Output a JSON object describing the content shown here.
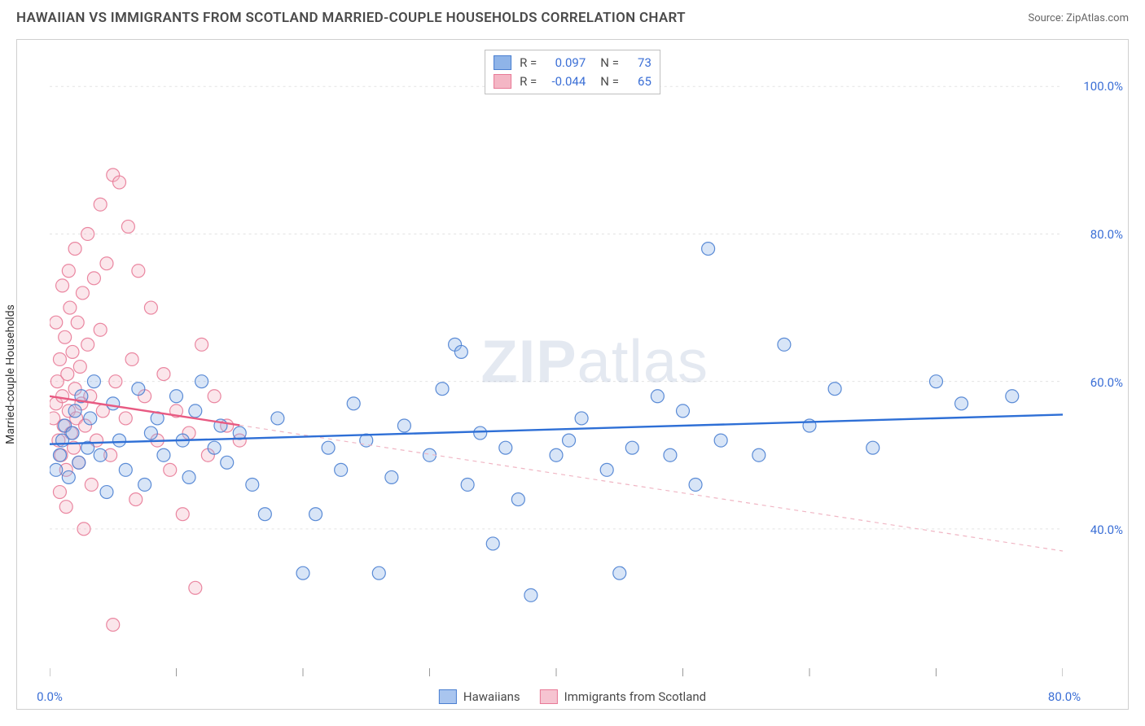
{
  "title": "HAWAIIAN VS IMMIGRANTS FROM SCOTLAND MARRIED-COUPLE HOUSEHOLDS CORRELATION CHART",
  "source": "Source: ZipAtlas.com",
  "ylabel": "Married-couple Households",
  "watermark_a": "ZIP",
  "watermark_b": "atlas",
  "chart": {
    "type": "scatter",
    "xlim": [
      0,
      80
    ],
    "ylim": [
      20,
      105
    ],
    "x_ticks": [
      0,
      10,
      20,
      30,
      40,
      50,
      60,
      70,
      80
    ],
    "x_tick_labels": {
      "0": "0.0%",
      "80": "80.0%"
    },
    "y_ticks": [
      40,
      60,
      80,
      100
    ],
    "y_tick_labels": [
      "40.0%",
      "60.0%",
      "80.0%",
      "100.0%"
    ],
    "grid_color": "#e3e3e3",
    "axis_color": "#cfcfcf",
    "background": "#ffffff",
    "marker_radius": 8,
    "marker_opacity": 0.35,
    "marker_stroke_opacity": 0.9,
    "stroke_width": 1.2,
    "series": [
      {
        "name": "Hawaiians",
        "color_fill": "#8fb4e8",
        "color_stroke": "#4a7fd1",
        "R": "0.097",
        "N": "73",
        "trend": {
          "x1": 0,
          "y1": 51.5,
          "x2": 80,
          "y2": 55.5,
          "solid_to_x": 80,
          "line_color": "#2e6fd6",
          "line_width": 2.4
        },
        "points": [
          [
            0.5,
            48
          ],
          [
            0.8,
            50
          ],
          [
            1.0,
            52
          ],
          [
            1.2,
            54
          ],
          [
            1.5,
            47
          ],
          [
            1.8,
            53
          ],
          [
            2.0,
            56
          ],
          [
            2.3,
            49
          ],
          [
            2.5,
            58
          ],
          [
            3.0,
            51
          ],
          [
            3.2,
            55
          ],
          [
            3.5,
            60
          ],
          [
            4.0,
            50
          ],
          [
            4.5,
            45
          ],
          [
            5.0,
            57
          ],
          [
            5.5,
            52
          ],
          [
            6.0,
            48
          ],
          [
            7.0,
            59
          ],
          [
            7.5,
            46
          ],
          [
            8.0,
            53
          ],
          [
            8.5,
            55
          ],
          [
            9.0,
            50
          ],
          [
            10.0,
            58
          ],
          [
            10.5,
            52
          ],
          [
            11.0,
            47
          ],
          [
            11.5,
            56
          ],
          [
            12.0,
            60
          ],
          [
            13.0,
            51
          ],
          [
            13.5,
            54
          ],
          [
            14.0,
            49
          ],
          [
            15.0,
            53
          ],
          [
            16.0,
            46
          ],
          [
            17.0,
            42
          ],
          [
            18.0,
            55
          ],
          [
            20.0,
            34
          ],
          [
            21.0,
            42
          ],
          [
            22.0,
            51
          ],
          [
            23.0,
            48
          ],
          [
            24.0,
            57
          ],
          [
            25.0,
            52
          ],
          [
            26.0,
            34
          ],
          [
            27.0,
            47
          ],
          [
            28.0,
            54
          ],
          [
            30.0,
            50
          ],
          [
            31.0,
            59
          ],
          [
            32.0,
            65
          ],
          [
            32.5,
            64
          ],
          [
            33.0,
            46
          ],
          [
            34.0,
            53
          ],
          [
            35.0,
            38
          ],
          [
            36.0,
            51
          ],
          [
            37.0,
            44
          ],
          [
            38.0,
            31
          ],
          [
            40.0,
            50
          ],
          [
            41.0,
            52
          ],
          [
            42.0,
            55
          ],
          [
            44.0,
            48
          ],
          [
            45.0,
            34
          ],
          [
            46.0,
            51
          ],
          [
            48.0,
            58
          ],
          [
            49.0,
            50
          ],
          [
            50.0,
            56
          ],
          [
            51.0,
            46
          ],
          [
            52.0,
            78
          ],
          [
            53.0,
            52
          ],
          [
            56.0,
            50
          ],
          [
            58.0,
            65
          ],
          [
            60.0,
            54
          ],
          [
            62.0,
            59
          ],
          [
            65.0,
            51
          ],
          [
            70.0,
            60
          ],
          [
            72.0,
            57
          ],
          [
            76.0,
            58
          ]
        ]
      },
      {
        "name": "Immigrants from Scotland",
        "color_fill": "#f4b6c5",
        "color_stroke": "#e87a97",
        "R": "-0.044",
        "N": "65",
        "trend": {
          "x1": 0,
          "y1": 58,
          "x2": 80,
          "y2": 37,
          "solid_to_x": 15,
          "line_color": "#e85a82",
          "line_width": 2.4,
          "dash_color": "#f0b6c4"
        },
        "points": [
          [
            0.3,
            55
          ],
          [
            0.5,
            57
          ],
          [
            0.6,
            60
          ],
          [
            0.7,
            52
          ],
          [
            0.8,
            63
          ],
          [
            0.9,
            50
          ],
          [
            1.0,
            58
          ],
          [
            1.1,
            54
          ],
          [
            1.2,
            66
          ],
          [
            1.3,
            48
          ],
          [
            1.4,
            61
          ],
          [
            1.5,
            56
          ],
          [
            1.6,
            70
          ],
          [
            1.7,
            53
          ],
          [
            1.8,
            64
          ],
          [
            1.9,
            51
          ],
          [
            2.0,
            59
          ],
          [
            2.1,
            55
          ],
          [
            2.2,
            68
          ],
          [
            2.3,
            49
          ],
          [
            2.4,
            62
          ],
          [
            2.5,
            57
          ],
          [
            2.6,
            72
          ],
          [
            2.8,
            54
          ],
          [
            3.0,
            65
          ],
          [
            3.2,
            58
          ],
          [
            3.5,
            74
          ],
          [
            3.7,
            52
          ],
          [
            4.0,
            67
          ],
          [
            4.2,
            56
          ],
          [
            4.5,
            76
          ],
          [
            4.8,
            50
          ],
          [
            5.0,
            88
          ],
          [
            5.2,
            60
          ],
          [
            5.5,
            87
          ],
          [
            6.0,
            55
          ],
          [
            6.2,
            81
          ],
          [
            6.5,
            63
          ],
          [
            7.0,
            75
          ],
          [
            7.5,
            58
          ],
          [
            8.0,
            70
          ],
          [
            8.5,
            52
          ],
          [
            9.0,
            61
          ],
          [
            9.5,
            48
          ],
          [
            10.0,
            56
          ],
          [
            10.5,
            42
          ],
          [
            11.0,
            53
          ],
          [
            12.0,
            65
          ],
          [
            12.5,
            50
          ],
          [
            13.0,
            58
          ],
          [
            14.0,
            54
          ],
          [
            15.0,
            52
          ],
          [
            4.0,
            84
          ],
          [
            3.0,
            80
          ],
          [
            1.5,
            75
          ],
          [
            1.0,
            73
          ],
          [
            2.0,
            78
          ],
          [
            0.5,
            68
          ],
          [
            11.5,
            32
          ],
          [
            5.0,
            27
          ],
          [
            0.8,
            45
          ],
          [
            1.3,
            43
          ],
          [
            2.7,
            40
          ],
          [
            3.3,
            46
          ],
          [
            6.8,
            44
          ]
        ]
      }
    ]
  },
  "stats_labels": {
    "R": "R =",
    "N": "N ="
  },
  "legend": {
    "items": [
      {
        "label": "Hawaiians",
        "fill": "#a9c5ef",
        "stroke": "#4a7fd1"
      },
      {
        "label": "Immigrants from Scotland",
        "fill": "#f6c4d1",
        "stroke": "#e87a97"
      }
    ]
  }
}
